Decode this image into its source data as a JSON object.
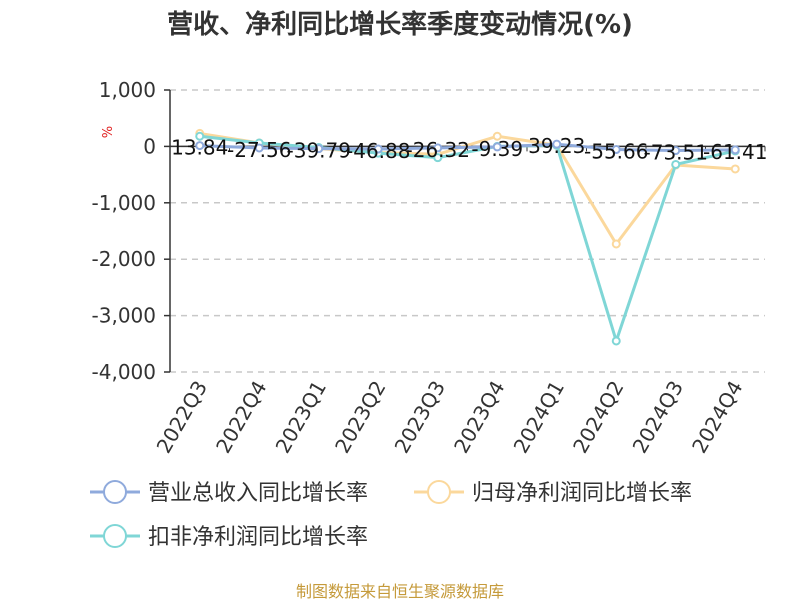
{
  "title": "营收、净利同比增长率季度变动情况(%)",
  "source": "制图数据来自恒生聚源数据库",
  "colors": {
    "series1": "#8faadc",
    "series2": "#fbd89c",
    "series3": "#7fd6d6"
  },
  "chart_data": {
    "type": "line",
    "title": "营收、净利同比增长率季度变动情况(%)",
    "ylabel": "%",
    "ylim": [
      -4000,
      1000
    ],
    "yticks": [
      1000,
      0,
      -1000,
      -2000,
      -3000,
      -4000
    ],
    "ytick_labels": [
      "1,000",
      "0",
      "-1,000",
      "-2,000",
      "-3,000",
      "-4,000"
    ],
    "grid": true,
    "legend_position": "bottom",
    "categories": [
      "2022Q3",
      "2022Q4",
      "2023Q1",
      "2023Q2",
      "2023Q3",
      "2023Q4",
      "2024Q1",
      "2024Q2",
      "2024Q3",
      "2024Q4"
    ],
    "series": [
      {
        "name": "营业总收入同比增长率",
        "color": "#8faadc",
        "values": [
          13.84,
          -27.56,
          -39.79,
          -46.88,
          -26.32,
          -9.39,
          39.23,
          -55.66,
          -73.51,
          -61.41
        ]
      },
      {
        "name": "归母净利润同比增长率",
        "color": "#fbd89c",
        "values": [
          230,
          60,
          -40,
          -110,
          -140,
          180,
          20,
          -1730,
          -330,
          -400
        ]
      },
      {
        "name": "扣非净利润同比增长率",
        "color": "#7fd6d6",
        "values": [
          180,
          60,
          -20,
          -120,
          -200,
          0,
          20,
          -3450,
          -320,
          -80
        ]
      }
    ],
    "data_labels": [
      "13.84",
      "-27.56",
      "-39.79",
      "-46.88",
      "-26.32",
      "-9.39",
      "39.23",
      "-55.66",
      "-73.51",
      "-61.41"
    ]
  }
}
